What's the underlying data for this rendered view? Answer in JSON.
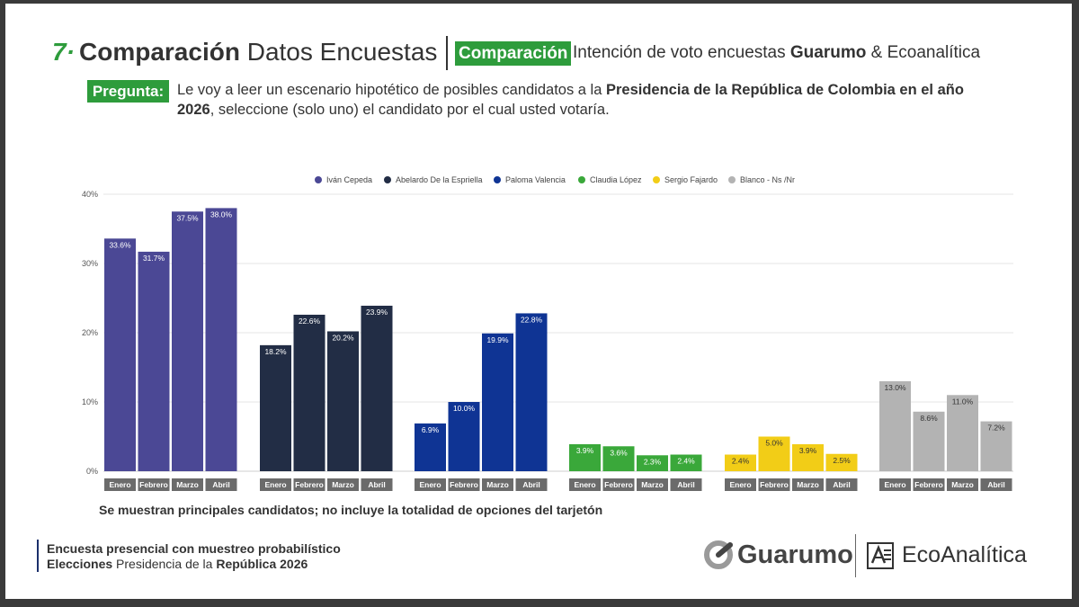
{
  "header": {
    "number": "7·",
    "title_bold": "Comparación",
    "title_rest": " Datos Encuestas",
    "badge": "Comparación",
    "subtitle_pre": "Intención de voto encuestas ",
    "subtitle_bold": "Guarumo",
    "subtitle_post": "  & Ecoanalítica"
  },
  "question": {
    "label": "Pregunta:",
    "text_pre": "Le voy a leer un escenario hipotético de posibles candidatos a la ",
    "text_bold": "Presidencia de la República de Colombia en el año 2026",
    "text_post": ", seleccione (solo uno) el candidato por el cual usted votaría."
  },
  "note": "Se muestran principales candidatos; no incluye la totalidad de opciones del tarjetón",
  "footer": {
    "line1": "Encuesta presencial con muestreo probabilístico",
    "line2_bold": "Elecciones",
    "line2_mid": " Presidencia de la ",
    "line2_bold2": "República 2026"
  },
  "logos": {
    "guarumo": "Guarumo",
    "ecoanalitica": "EcoAnalítica"
  },
  "chart_data": {
    "type": "bar",
    "categories": [
      "Enero",
      "Febrero",
      "Marzo",
      "Abril"
    ],
    "ylim": [
      0,
      40
    ],
    "yticks": [
      "0%",
      "10%",
      "20%",
      "30%",
      "40%"
    ],
    "grid": true,
    "legend_position": "top",
    "series": [
      {
        "name": "Iván Cepeda",
        "color": "#4b4895",
        "values": [
          33.6,
          31.7,
          37.5,
          38.0
        ],
        "labels": [
          "33.6%",
          "31.7%",
          "37.5%",
          "38.0%"
        ]
      },
      {
        "name": "Abelardo De la Espriella",
        "color": "#222d45",
        "values": [
          18.2,
          22.6,
          20.2,
          23.9
        ],
        "labels": [
          "18.2%",
          "22.6%",
          "20.2%",
          "23.9%"
        ]
      },
      {
        "name": "Paloma Valencia",
        "color": "#0f3494",
        "values": [
          6.9,
          10.0,
          19.9,
          22.8
        ],
        "labels": [
          "6.9%",
          "10.0%",
          "19.9%",
          "22.8%"
        ]
      },
      {
        "name": "Claudia López",
        "color": "#3aa83a",
        "values": [
          3.9,
          3.6,
          2.3,
          2.4
        ],
        "labels": [
          "3.9%",
          "3.6%",
          "2.3%",
          "2.4%"
        ]
      },
      {
        "name": "Sergio Fajardo",
        "color": "#f2cd17",
        "values": [
          2.4,
          5.0,
          3.9,
          2.5
        ],
        "labels": [
          "2.4%",
          "5.0%",
          "3.9%",
          "2.5%"
        ]
      },
      {
        "name": "Blanco - Ns /Nr",
        "color": "#b3b3b3",
        "values": [
          13.0,
          8.6,
          11.0,
          7.2
        ],
        "labels": [
          "13.0%",
          "8.6%",
          "11.0%",
          "7.2%"
        ]
      }
    ]
  }
}
